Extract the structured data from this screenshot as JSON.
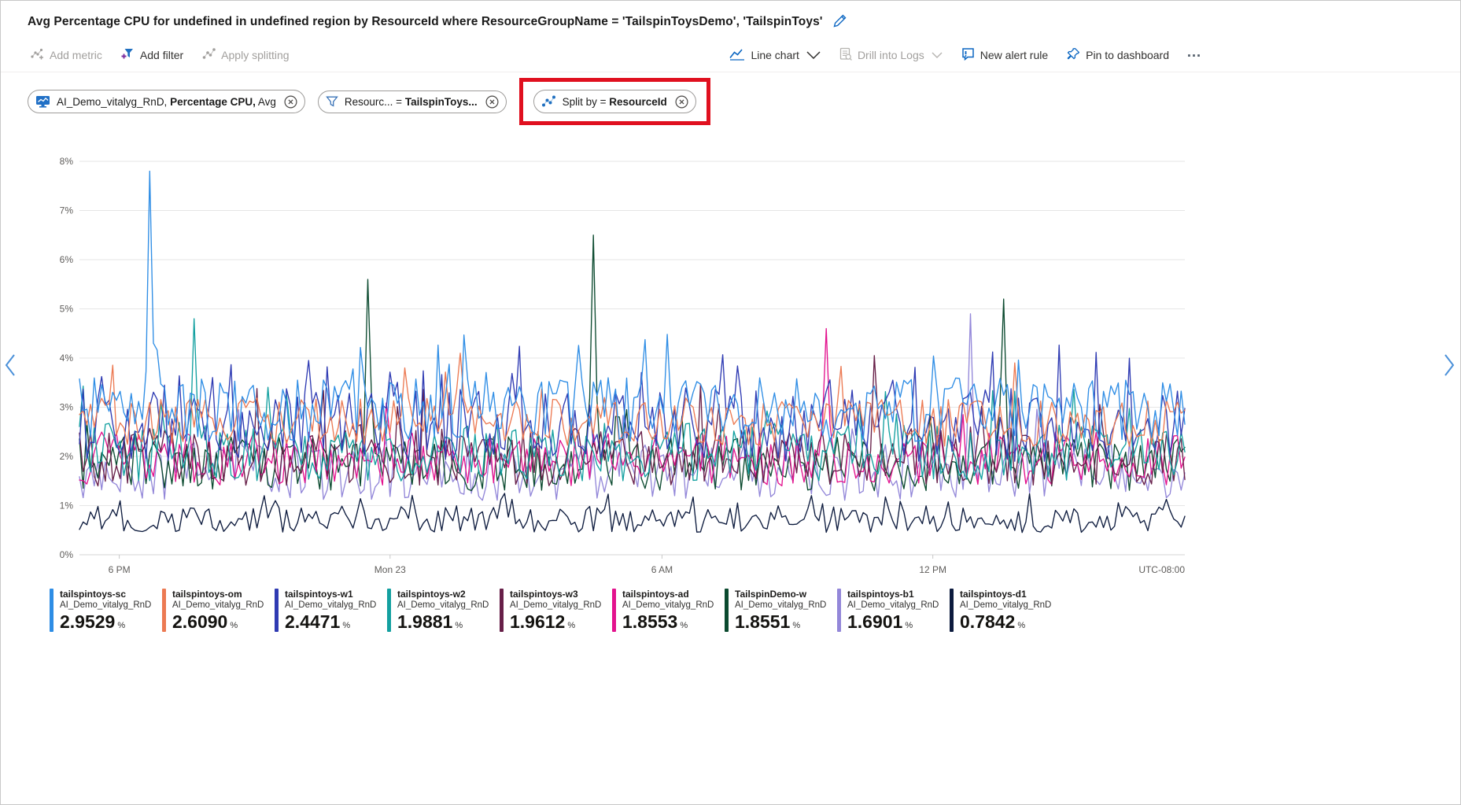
{
  "header": {
    "title": "Avg Percentage CPU for undefined in undefined region by ResourceId where ResourceGroupName = 'TailspinToysDemo', 'TailspinToys'"
  },
  "toolbar": {
    "add_metric": "Add metric",
    "add_filter": "Add filter",
    "apply_splitting": "Apply splitting",
    "line_chart": "Line chart",
    "drill_into_logs": "Drill into Logs",
    "new_alert_rule": "New alert rule",
    "pin_to_dashboard": "Pin to dashboard",
    "more": "…"
  },
  "colors": {
    "accent": "#0b66c2",
    "highlight_red": "#e0101f"
  },
  "pills": [
    {
      "name": "metric-pill",
      "icon": "metric-monitor-icon",
      "highlighted": false,
      "parts": [
        {
          "text": "AI_Demo_vitalyg_RnD, "
        },
        {
          "text": "Percentage CPU,",
          "bold": true
        },
        {
          "text": " Avg"
        }
      ]
    },
    {
      "name": "filter-pill",
      "icon": "filter-funnel-icon",
      "highlighted": false,
      "parts": [
        {
          "text": "Resourc...  =  "
        },
        {
          "text": "TailspinToys...",
          "bold": true
        }
      ]
    },
    {
      "name": "split-by-pill",
      "icon": "split-scatter-icon",
      "highlighted": true,
      "parts": [
        {
          "text": "Split by  =  "
        },
        {
          "text": "ResourceId",
          "bold": true
        }
      ]
    }
  ],
  "chart_data": {
    "type": "line",
    "title": "Avg Percentage CPU by ResourceId",
    "ylim": [
      0,
      8
    ],
    "yticks": [
      "0%",
      "1%",
      "2%",
      "3%",
      "4%",
      "5%",
      "6%",
      "7%",
      "8%"
    ],
    "xticks": [
      {
        "label": "6 PM",
        "pos": 0.036
      },
      {
        "label": "Mon 23",
        "pos": 0.281
      },
      {
        "label": "6 AM",
        "pos": 0.527
      },
      {
        "label": "12 PM",
        "pos": 0.772
      }
    ],
    "timezone": "UTC-08:00",
    "unit": "%",
    "grid": true,
    "legend_position": "bottom",
    "series": [
      {
        "name": "tailspintoys-sc",
        "resource": "AI_Demo_vitalyg_RnD",
        "avg_label": "2.9529",
        "avg": 2.9529,
        "color": "#2e8de5",
        "band": [
          2.3,
          3.6
        ],
        "spike_rate": 0.04,
        "spike_max": 4.6,
        "spikes": [
          {
            "x": 0.065,
            "y": 7.8
          }
        ]
      },
      {
        "name": "tailspintoys-om",
        "resource": "AI_Demo_vitalyg_RnD",
        "avg_label": "2.6090",
        "avg": 2.609,
        "color": "#ec7a53",
        "band": [
          2.2,
          3.2
        ],
        "spike_rate": 0.03,
        "spike_max": 4.0,
        "spikes": [
          {
            "x": 0.345,
            "y": 4.1
          }
        ]
      },
      {
        "name": "tailspintoys-w1",
        "resource": "AI_Demo_vitalyg_RnD",
        "avg_label": "2.4471",
        "avg": 2.4471,
        "color": "#2f3bb3",
        "band": [
          1.9,
          3.4
        ],
        "spike_rate": 0.08,
        "spike_max": 4.3,
        "spikes": []
      },
      {
        "name": "tailspintoys-w2",
        "resource": "AI_Demo_vitalyg_RnD",
        "avg_label": "1.9881",
        "avg": 1.9881,
        "color": "#13a0a0",
        "band": [
          1.5,
          2.7
        ],
        "spike_rate": 0.03,
        "spike_max": 3.5,
        "spikes": [
          {
            "x": 0.105,
            "y": 4.8
          }
        ]
      },
      {
        "name": "tailspintoys-w3",
        "resource": "AI_Demo_vitalyg_RnD",
        "avg_label": "1.9612",
        "avg": 1.9612,
        "color": "#671f48",
        "band": [
          1.4,
          2.6
        ],
        "spike_rate": 0.03,
        "spike_max": 3.7,
        "spikes": [
          {
            "x": 0.72,
            "y": 4.05
          }
        ]
      },
      {
        "name": "tailspintoys-ad",
        "resource": "AI_Demo_vitalyg_RnD",
        "avg_label": "1.8553",
        "avg": 1.8553,
        "color": "#e3138e",
        "band": [
          1.4,
          2.5
        ],
        "spike_rate": 0.03,
        "spike_max": 3.4,
        "spikes": [
          {
            "x": 0.675,
            "y": 4.6
          }
        ]
      },
      {
        "name": "TailspinDemo-w",
        "resource": "AI_Demo_vitalyg_RnD",
        "avg_label": "1.8551",
        "avg": 1.8551,
        "color": "#0b4a2f",
        "band": [
          1.3,
          2.4
        ],
        "spike_rate": 0.02,
        "spike_max": 3.1,
        "spikes": [
          {
            "x": 0.26,
            "y": 5.6
          },
          {
            "x": 0.465,
            "y": 6.5
          },
          {
            "x": 0.835,
            "y": 5.2
          }
        ]
      },
      {
        "name": "tailspintoys-b1",
        "resource": "AI_Demo_vitalyg_RnD",
        "avg_label": "1.6901",
        "avg": 1.6901,
        "color": "#9387d9",
        "band": [
          1.1,
          2.3
        ],
        "spike_rate": 0.02,
        "spike_max": 3.0,
        "spikes": [
          {
            "x": 0.805,
            "y": 4.9
          }
        ]
      },
      {
        "name": "tailspintoys-d1",
        "resource": "AI_Demo_vitalyg_RnD",
        "avg_label": "0.7842",
        "avg": 0.7842,
        "color": "#0d1b3e",
        "band": [
          0.45,
          1.0
        ],
        "spike_rate": 0.06,
        "spike_max": 1.25,
        "spikes": []
      }
    ]
  }
}
